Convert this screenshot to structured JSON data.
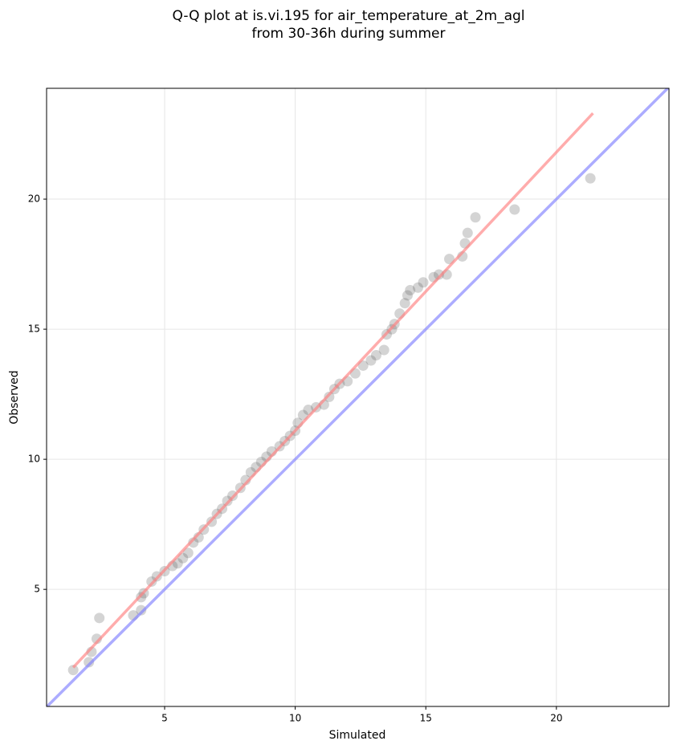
{
  "chart_data": {
    "type": "scatter",
    "title": [
      "Q-Q plot at is.vi.195 for air_temperature_at_2m_agl",
      "from 30-36h during summer"
    ],
    "xlabel": "Simulated",
    "ylabel": "Observed",
    "xlim": [
      0.48,
      24.31
    ],
    "ylim": [
      0.5,
      24.26
    ],
    "xticks": [
      5,
      10,
      15,
      20
    ],
    "yticks": [
      5,
      10,
      15,
      20
    ],
    "grid": true,
    "color": "#555555",
    "x": [
      1.5,
      2.1,
      2.2,
      2.4,
      2.5,
      3.8,
      4.1,
      4.1,
      4.2,
      4.5,
      4.7,
      5.0,
      5.3,
      5.5,
      5.7,
      5.9,
      6.1,
      6.3,
      6.5,
      6.8,
      7.0,
      7.2,
      7.4,
      7.6,
      7.9,
      8.1,
      8.3,
      8.5,
      8.7,
      8.9,
      9.1,
      9.4,
      9.6,
      9.8,
      10.0,
      10.1,
      10.3,
      10.5,
      10.8,
      11.1,
      11.3,
      11.5,
      11.7,
      12.0,
      12.3,
      12.6,
      12.9,
      13.1,
      13.4,
      13.5,
      13.7,
      13.8,
      14.0,
      14.2,
      14.3,
      14.4,
      14.7,
      14.9,
      15.3,
      15.5,
      15.8,
      15.9,
      16.4,
      16.5,
      16.6,
      16.9,
      18.4,
      21.3
    ],
    "y": [
      1.9,
      2.2,
      2.6,
      3.1,
      3.9,
      4.0,
      4.2,
      4.7,
      4.85,
      5.3,
      5.5,
      5.7,
      5.9,
      6.0,
      6.2,
      6.4,
      6.8,
      7.0,
      7.3,
      7.6,
      7.9,
      8.1,
      8.4,
      8.6,
      8.9,
      9.2,
      9.5,
      9.7,
      9.9,
      10.1,
      10.3,
      10.5,
      10.7,
      10.9,
      11.1,
      11.4,
      11.7,
      11.9,
      12.0,
      12.1,
      12.4,
      12.7,
      12.9,
      13.0,
      13.3,
      13.6,
      13.8,
      14.0,
      14.2,
      14.8,
      15.0,
      15.2,
      15.6,
      16.0,
      16.3,
      16.5,
      16.6,
      16.8,
      17.0,
      17.1,
      17.1,
      17.7,
      17.8,
      18.3,
      18.7,
      19.3,
      19.6,
      20.8
    ],
    "lines": [
      {
        "color": "#8080ff",
        "x": [
          0.48,
          24.31
        ],
        "y": [
          0.48,
          24.31
        ]
      },
      {
        "color": "#ff8080",
        "x": [
          1.5,
          21.4
        ],
        "y": [
          2.0,
          23.3
        ]
      }
    ]
  }
}
